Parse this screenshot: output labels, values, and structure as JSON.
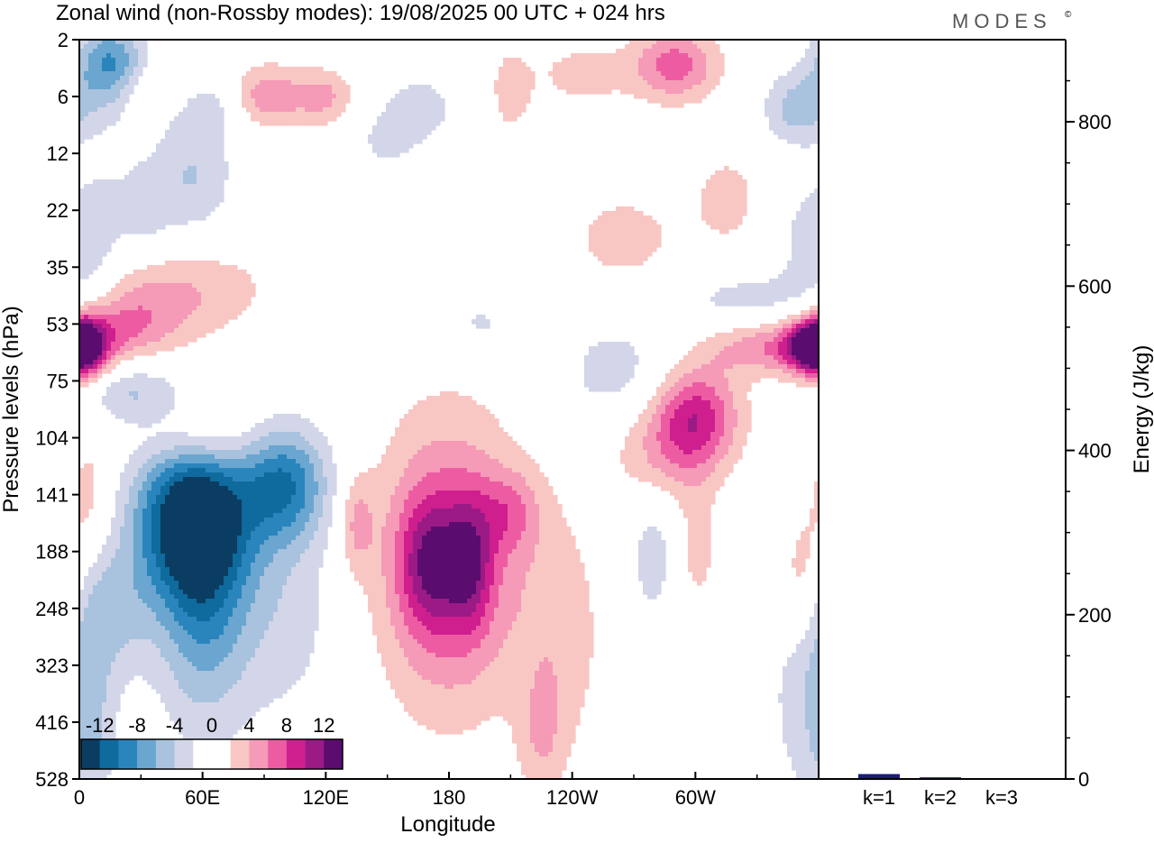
{
  "header": {
    "title": "Zonal wind (non-Rossby modes):  19/08/2025  00 UTC  + 024 hrs",
    "brand": "MODES",
    "brand_mark": "©"
  },
  "colors": {
    "neg": [
      "#0b3d63",
      "#0f6a9e",
      "#2a85bd",
      "#6aa6cf",
      "#a9c2de",
      "#d3d6e8"
    ],
    "zero": "#ffffff",
    "pos": [
      "#f8c7c4",
      "#f59ab7",
      "#ed5ca3",
      "#cf1f8f",
      "#9b1a86",
      "#5a0d6e"
    ],
    "energy_bar": "#1b1b7a"
  },
  "chart_data": [
    {
      "type": "heatmap",
      "title": "Zonal wind (non-Rossby modes):  19/08/2025  00 UTC  + 024 hrs",
      "xlabel": "Longitude",
      "ylabel": "Pressure levels (hPa)",
      "x_ticks": [
        "0",
        "60E",
        "120E",
        "180",
        "120W",
        "60W"
      ],
      "x_tick_values": [
        0,
        60,
        120,
        180,
        240,
        300
      ],
      "xlim": [
        0,
        360
      ],
      "y_ticks": [
        "2",
        "6",
        "12",
        "22",
        "35",
        "53",
        "75",
        "104",
        "141",
        "188",
        "248",
        "323",
        "416",
        "528"
      ],
      "colorbar": {
        "labels": [
          "-12",
          "-8",
          "-4",
          "0",
          "4",
          "8",
          "12"
        ],
        "levels": [
          -14,
          -12,
          -10,
          -8,
          -6,
          -4,
          -2,
          2,
          4,
          6,
          8,
          10,
          12,
          14
        ]
      },
      "field": [
        {
          "lon": 15,
          "lev": 0.5,
          "dlon": 12,
          "dlev": 0.55,
          "amp": -9
        },
        {
          "lon": 35,
          "lev": 0.9,
          "dlon": 20,
          "dlev": 0.35,
          "amp": 3
        },
        {
          "lon": 65,
          "lev": 1.1,
          "dlon": 15,
          "dlev": 0.4,
          "amp": -4
        },
        {
          "lon": 90,
          "lev": 1.0,
          "dlon": 15,
          "dlev": 0.4,
          "amp": 6
        },
        {
          "lon": 120,
          "lev": 1.0,
          "dlon": 10,
          "dlev": 0.35,
          "amp": 4
        },
        {
          "lon": 165,
          "lev": 1.2,
          "dlon": 15,
          "dlev": 0.45,
          "amp": -3
        },
        {
          "lon": 210,
          "lev": 0.9,
          "dlon": 8,
          "dlev": 0.6,
          "amp": 3
        },
        {
          "lon": 245,
          "lev": 0.6,
          "dlon": 16,
          "dlev": 0.4,
          "amp": 3
        },
        {
          "lon": 290,
          "lev": 0.45,
          "dlon": 15,
          "dlev": 0.45,
          "amp": 7
        },
        {
          "lon": 350,
          "lev": 1.2,
          "dlon": 12,
          "dlev": 0.45,
          "amp": -5
        },
        {
          "lon": 55,
          "lev": 2.4,
          "dlon": 14,
          "dlev": 0.8,
          "amp": -4
        },
        {
          "lon": 30,
          "lev": 3.0,
          "dlon": 10,
          "dlev": 0.6,
          "amp": -3
        },
        {
          "lon": 10,
          "lev": 3.5,
          "dlon": 8,
          "dlev": 0.9,
          "amp": -2.5
        },
        {
          "lon": 150,
          "lev": 1.8,
          "dlon": 10,
          "dlev": 0.3,
          "amp": -2.5
        },
        {
          "lon": 265,
          "lev": 3.5,
          "dlon": 20,
          "dlev": 0.6,
          "amp": 3
        },
        {
          "lon": 315,
          "lev": 2.8,
          "dlon": 12,
          "dlev": 0.6,
          "amp": 3
        },
        {
          "lon": 355,
          "lev": 3.6,
          "dlon": 10,
          "dlev": 0.8,
          "amp": -3
        },
        {
          "lon": 50,
          "lev": 4.4,
          "dlon": 30,
          "dlev": 0.6,
          "amp": 4
        },
        {
          "lon": 20,
          "lev": 5.0,
          "dlon": 20,
          "dlev": 0.45,
          "amp": 5
        },
        {
          "lon": 3,
          "lev": 5.4,
          "dlon": 8,
          "dlev": 0.4,
          "amp": 9
        },
        {
          "lon": 330,
          "lev": 4.6,
          "dlon": 30,
          "dlev": 0.4,
          "amp": -3
        },
        {
          "lon": 340,
          "lev": 5.4,
          "dlon": 25,
          "dlev": 0.35,
          "amp": 6
        },
        {
          "lon": 355,
          "lev": 5.4,
          "dlon": 8,
          "dlev": 0.3,
          "amp": 9
        },
        {
          "lon": 260,
          "lev": 5.8,
          "dlon": 22,
          "dlev": 0.6,
          "amp": -3
        },
        {
          "lon": 195,
          "lev": 5.0,
          "dlon": 15,
          "dlev": 0.4,
          "amp": -2.5
        },
        {
          "lon": 230,
          "lev": 5.6,
          "dlon": 8,
          "dlev": 0.4,
          "amp": 2.5
        },
        {
          "lon": 25,
          "lev": 6.2,
          "dlon": 15,
          "dlev": 0.4,
          "amp": -4
        },
        {
          "lon": 60,
          "lev": 7.0,
          "dlon": 20,
          "dlev": 0.45,
          "amp": 4
        },
        {
          "lon": 300,
          "lev": 6.6,
          "dlon": 15,
          "dlev": 0.6,
          "amp": 9
        },
        {
          "lon": 285,
          "lev": 7.4,
          "dlon": 18,
          "dlev": 0.6,
          "amp": 4
        },
        {
          "lon": 55,
          "lev": 8.4,
          "dlon": 20,
          "dlev": 1.0,
          "amp": -14
        },
        {
          "lon": 100,
          "lev": 7.8,
          "dlon": 15,
          "dlev": 0.7,
          "amp": -9
        },
        {
          "lon": 60,
          "lev": 10.0,
          "dlon": 16,
          "dlev": 1.5,
          "amp": -7
        },
        {
          "lon": 100,
          "lev": 10.0,
          "dlon": 20,
          "dlev": 1.5,
          "amp": -3
        },
        {
          "lon": 15,
          "lev": 10.0,
          "dlon": 15,
          "dlev": 0.8,
          "amp": -4
        },
        {
          "lon": 5,
          "lev": 8.0,
          "dlon": 8,
          "dlev": 0.8,
          "amp": 3
        },
        {
          "lon": 180,
          "lev": 9.2,
          "dlon": 25,
          "dlev": 1.8,
          "amp": 8
        },
        {
          "lon": 170,
          "lev": 9.2,
          "dlon": 10,
          "dlev": 0.8,
          "amp": 6
        },
        {
          "lon": 190,
          "lev": 9.2,
          "dlon": 8,
          "dlev": 0.8,
          "amp": 6
        },
        {
          "lon": 210,
          "lev": 8.3,
          "dlon": 10,
          "dlev": 0.5,
          "amp": 4
        },
        {
          "lon": 135,
          "lev": 8.5,
          "dlon": 6,
          "dlev": 0.6,
          "amp": 4
        },
        {
          "lon": 235,
          "lev": 10.5,
          "dlon": 15,
          "dlev": 1.6,
          "amp": 3
        },
        {
          "lon": 280,
          "lev": 9.0,
          "dlon": 10,
          "dlev": 1.0,
          "amp": -3
        },
        {
          "lon": 300,
          "lev": 9.0,
          "dlon": 8,
          "dlev": 0.8,
          "amp": 3
        },
        {
          "lon": 352,
          "lev": 9.5,
          "dlon": 8,
          "dlev": 0.8,
          "amp": 4
        },
        {
          "lon": 355,
          "lev": 11.5,
          "dlon": 15,
          "dlev": 1.5,
          "amp": -3
        },
        {
          "lon": 225,
          "lev": 12.3,
          "dlon": 8,
          "dlev": 0.8,
          "amp": 3
        },
        {
          "lon": 5,
          "lev": 12.0,
          "dlon": 8,
          "dlev": 1.2,
          "amp": -3
        }
      ]
    },
    {
      "type": "bar",
      "ylabel": "Energy (J/kg)",
      "categories": [
        "k=1",
        "k=2",
        "k=3"
      ],
      "values": [
        6,
        2,
        1
      ],
      "ylim": [
        0,
        900
      ],
      "y_ticks": [
        "0",
        "200",
        "400",
        "600",
        "800"
      ],
      "y_tick_values": [
        0,
        200,
        400,
        600,
        800
      ]
    }
  ]
}
